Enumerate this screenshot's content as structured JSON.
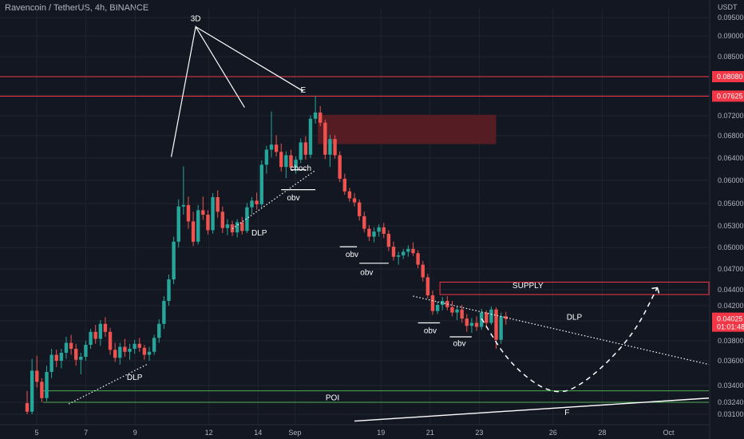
{
  "title": "Ravencoin / TetherUS, 4h, BINANCE",
  "currency": "USDT",
  "colors": {
    "background": "#131722",
    "grid": "#1f2430",
    "up": "#26a69a",
    "down": "#ef5350",
    "level_line": "#f23645",
    "supply_zone": "#5d1d24",
    "poi_line": "#4caf50",
    "annotation": "#ffffff",
    "axis_text": "#b2b5be",
    "price_tag": "#f23645"
  },
  "chart_data": {
    "type": "candlestick",
    "symbol": "Ravencoin / TetherUS",
    "interval": "4h",
    "exchange": "BINANCE",
    "y_axis_ticks": [
      0.031,
      0.0324,
      0.034,
      0.036,
      0.038,
      0.04,
      0.042,
      0.044,
      0.047,
      0.05,
      0.053,
      0.056,
      0.06,
      0.064,
      0.068,
      0.072,
      0.0765,
      0.0808,
      0.0855,
      0.09,
      0.095
    ],
    "y_axis_labels": [
      "0.03100",
      "0.03240",
      "0.03400",
      "0.03600",
      "0.03800",
      "0.04000",
      "0.04200",
      "0.04400",
      "0.04700",
      "0.05000",
      "0.05300",
      "0.05600",
      "0.06000",
      "0.06400",
      "0.06800",
      "0.07200",
      "0.07650",
      "0.08080",
      "0.08500",
      "0.09000",
      "0.09500"
    ],
    "x_axis_labels": [
      "5",
      "7",
      "9",
      "12",
      "14",
      "Sep",
      "19",
      "21",
      "23",
      "26",
      "28",
      "Oct"
    ],
    "x_axis_positions": [
      0,
      2,
      4,
      7,
      9,
      10.5,
      14,
      16,
      18,
      21,
      23,
      25.7
    ],
    "candles": [
      [
        0.0323,
        0.0335,
        0.031,
        0.0313
      ],
      [
        0.0313,
        0.0362,
        0.031,
        0.0352
      ],
      [
        0.0352,
        0.0365,
        0.0338,
        0.0343
      ],
      [
        0.0343,
        0.0346,
        0.0324,
        0.0328
      ],
      [
        0.0328,
        0.0356,
        0.0325,
        0.0351
      ],
      [
        0.0351,
        0.0372,
        0.0346,
        0.0366
      ],
      [
        0.0366,
        0.0371,
        0.0355,
        0.036
      ],
      [
        0.036,
        0.0372,
        0.0354,
        0.0368
      ],
      [
        0.0368,
        0.0384,
        0.0362,
        0.0378
      ],
      [
        0.0378,
        0.0386,
        0.0366,
        0.0372
      ],
      [
        0.0372,
        0.0377,
        0.0356,
        0.0361
      ],
      [
        0.0361,
        0.0368,
        0.0349,
        0.0364
      ],
      [
        0.0364,
        0.038,
        0.036,
        0.0376
      ],
      [
        0.0376,
        0.0392,
        0.0372,
        0.0389
      ],
      [
        0.0389,
        0.0396,
        0.0377,
        0.0382
      ],
      [
        0.0382,
        0.0401,
        0.0375,
        0.0397
      ],
      [
        0.0397,
        0.0405,
        0.0384,
        0.0389
      ],
      [
        0.0389,
        0.0393,
        0.0366,
        0.0371
      ],
      [
        0.0371,
        0.0378,
        0.0359,
        0.0363
      ],
      [
        0.0363,
        0.0378,
        0.0357,
        0.0374
      ],
      [
        0.0374,
        0.0382,
        0.0364,
        0.0369
      ],
      [
        0.0369,
        0.0377,
        0.0361,
        0.0372
      ],
      [
        0.0372,
        0.0381,
        0.0367,
        0.0377
      ],
      [
        0.0377,
        0.0383,
        0.0369,
        0.0373
      ],
      [
        0.0373,
        0.0376,
        0.0361,
        0.0366
      ],
      [
        0.0366,
        0.0374,
        0.036,
        0.0369
      ],
      [
        0.0369,
        0.0386,
        0.0366,
        0.0383
      ],
      [
        0.0383,
        0.0402,
        0.0378,
        0.0397
      ],
      [
        0.0397,
        0.0432,
        0.0392,
        0.0426
      ],
      [
        0.0426,
        0.0462,
        0.042,
        0.0455
      ],
      [
        0.0455,
        0.0515,
        0.0448,
        0.0508
      ],
      [
        0.0508,
        0.0567,
        0.05,
        0.0556
      ],
      [
        0.0556,
        0.0625,
        0.0545,
        0.0558
      ],
      [
        0.0558,
        0.0572,
        0.0526,
        0.0536
      ],
      [
        0.0536,
        0.0549,
        0.0502,
        0.0508
      ],
      [
        0.0508,
        0.0558,
        0.0504,
        0.0551
      ],
      [
        0.0551,
        0.0572,
        0.0538,
        0.0545
      ],
      [
        0.0545,
        0.0551,
        0.0518,
        0.0524
      ],
      [
        0.0524,
        0.0578,
        0.0519,
        0.0571
      ],
      [
        0.0571,
        0.0583,
        0.0541,
        0.0549
      ],
      [
        0.0549,
        0.0556,
        0.052,
        0.0527
      ],
      [
        0.0527,
        0.0539,
        0.0517,
        0.0532
      ],
      [
        0.0532,
        0.0537,
        0.0516,
        0.0521
      ],
      [
        0.0521,
        0.0539,
        0.0514,
        0.0535
      ],
      [
        0.0535,
        0.0542,
        0.0518,
        0.0523
      ],
      [
        0.0523,
        0.0561,
        0.052,
        0.0555
      ],
      [
        0.0555,
        0.0571,
        0.0546,
        0.0565
      ],
      [
        0.0565,
        0.0579,
        0.0552,
        0.0559
      ],
      [
        0.0559,
        0.0636,
        0.0555,
        0.0628
      ],
      [
        0.0628,
        0.0662,
        0.0612,
        0.0655
      ],
      [
        0.0655,
        0.0729,
        0.0641,
        0.0664
      ],
      [
        0.0664,
        0.0681,
        0.0643,
        0.0651
      ],
      [
        0.0651,
        0.0666,
        0.0616,
        0.0624
      ],
      [
        0.0624,
        0.0652,
        0.0604,
        0.0645
      ],
      [
        0.0645,
        0.0655,
        0.0618,
        0.0623
      ],
      [
        0.0623,
        0.0643,
        0.0612,
        0.0637
      ],
      [
        0.0637,
        0.0675,
        0.0631,
        0.0668
      ],
      [
        0.0668,
        0.0679,
        0.0637,
        0.0646
      ],
      [
        0.0646,
        0.0721,
        0.064,
        0.0714
      ],
      [
        0.0714,
        0.0762,
        0.0704,
        0.0727
      ],
      [
        0.0727,
        0.0741,
        0.0699,
        0.0706
      ],
      [
        0.0706,
        0.0712,
        0.0638,
        0.0646
      ],
      [
        0.0646,
        0.0682,
        0.0624,
        0.0674
      ],
      [
        0.0674,
        0.0681,
        0.0639,
        0.0645
      ],
      [
        0.0645,
        0.0652,
        0.0597,
        0.0603
      ],
      [
        0.0603,
        0.0612,
        0.0575,
        0.0581
      ],
      [
        0.0581,
        0.0587,
        0.0563,
        0.0569
      ],
      [
        0.0569,
        0.0578,
        0.0556,
        0.0562
      ],
      [
        0.0562,
        0.0567,
        0.0537,
        0.0543
      ],
      [
        0.0543,
        0.0549,
        0.0521,
        0.0526
      ],
      [
        0.0526,
        0.0531,
        0.0509,
        0.0515
      ],
      [
        0.0515,
        0.0528,
        0.0507,
        0.0522
      ],
      [
        0.0522,
        0.0532,
        0.0515,
        0.0528
      ],
      [
        0.0528,
        0.0534,
        0.0513,
        0.0519
      ],
      [
        0.0519,
        0.0524,
        0.0495,
        0.0501
      ],
      [
        0.0501,
        0.0508,
        0.0482,
        0.0487
      ],
      [
        0.0487,
        0.0494,
        0.0476,
        0.0489
      ],
      [
        0.0489,
        0.0498,
        0.0484,
        0.0494
      ],
      [
        0.0494,
        0.0503,
        0.0487,
        0.0498
      ],
      [
        0.0498,
        0.0507,
        0.0488,
        0.0492
      ],
      [
        0.0492,
        0.0496,
        0.0471,
        0.0476
      ],
      [
        0.0476,
        0.0481,
        0.0452,
        0.0458
      ],
      [
        0.0458,
        0.0463,
        0.0429,
        0.0433
      ],
      [
        0.0433,
        0.0439,
        0.0408,
        0.0413
      ],
      [
        0.0413,
        0.0425,
        0.0409,
        0.0421
      ],
      [
        0.0421,
        0.0431,
        0.0414,
        0.0426
      ],
      [
        0.0426,
        0.0432,
        0.0414,
        0.0418
      ],
      [
        0.0418,
        0.0426,
        0.0406,
        0.0411
      ],
      [
        0.0411,
        0.0419,
        0.0401,
        0.0415
      ],
      [
        0.0415,
        0.0421,
        0.0398,
        0.0403
      ],
      [
        0.0403,
        0.0409,
        0.0389,
        0.0395
      ],
      [
        0.0395,
        0.0404,
        0.0388,
        0.0398
      ],
      [
        0.0398,
        0.0406,
        0.039,
        0.0394
      ],
      [
        0.0394,
        0.0416,
        0.0391,
        0.0411
      ],
      [
        0.0411,
        0.0414,
        0.0393,
        0.0398
      ],
      [
        0.0398,
        0.0419,
        0.0396,
        0.0415
      ],
      [
        0.0415,
        0.0418,
        0.0372,
        0.0381
      ],
      [
        0.0381,
        0.0411,
        0.0377,
        0.0406
      ],
      [
        0.0406,
        0.0412,
        0.0396,
        0.04025
      ]
    ],
    "levels": [
      {
        "label": "0.08080",
        "value": 0.0808
      },
      {
        "label": "0.07625",
        "value": 0.07625
      }
    ],
    "current_price": {
      "label": "0.04025",
      "countdown": "01:01:48"
    },
    "zones": [
      {
        "name": "supply-zone-upper",
        "x0": 59.5,
        "x1": 96,
        "y0": 0.0665,
        "y1": 0.0722
      },
      {
        "name": "supply-zone-lower",
        "label": "SUPPLY",
        "x0": 84.5,
        "x1": 141,
        "y0": 0.0434,
        "y1": 0.0451
      }
    ],
    "poi": {
      "label": "POI",
      "x0": 0,
      "x1": 141,
      "y0": 0.0324,
      "y1": 0.0335
    },
    "annotations": [
      {
        "text": "3D",
        "x": 34.5,
        "y": 0.0949
      },
      {
        "text": "E",
        "x": 56.5,
        "y": 0.0778
      },
      {
        "text": "choch",
        "x": 56,
        "y": 0.0623
      },
      {
        "text": "obv",
        "x": 54.5,
        "y": 0.0571
      },
      {
        "text": "DLP",
        "x": 47.5,
        "y": 0.0521
      },
      {
        "text": "obv",
        "x": 66.5,
        "y": 0.0491
      },
      {
        "text": "obv",
        "x": 69.5,
        "y": 0.0466
      },
      {
        "text": "obv",
        "x": 82.5,
        "y": 0.0391
      },
      {
        "text": "obv",
        "x": 88.5,
        "y": 0.0378
      },
      {
        "text": "DLP",
        "x": 112,
        "y": 0.0406
      },
      {
        "text": "DLP",
        "x": 22,
        "y": 0.0347
      },
      {
        "text": "SUPPLY",
        "x": 102.5,
        "y": 0.0447
      },
      {
        "text": "POI",
        "x": 62.5,
        "y": 0.0329
      },
      {
        "text": "F",
        "x": 110.5,
        "y": 0.0313
      }
    ],
    "three_drive_lines": [
      [
        [
          29.5,
          0.0642
        ],
        [
          34.5,
          0.0925
        ],
        [
          44.5,
          0.0738
        ],
        [
          34.5,
          0.0925
        ],
        [
          56.5,
          0.0774
        ]
      ]
    ],
    "obv_marks": [
      {
        "x0": 52,
        "x1": 59,
        "y": 0.0584,
        "label": "obv"
      },
      {
        "x0": 54,
        "x1": 57,
        "y": 0.0619,
        "label": "choch"
      },
      {
        "x0": 64,
        "x1": 67.5,
        "y": 0.0501
      },
      {
        "x0": 68,
        "x1": 74,
        "y": 0.0478
      },
      {
        "x0": 80,
        "x1": 84.5,
        "y": 0.0398
      },
      {
        "x0": 86.5,
        "x1": 91,
        "y": 0.0384
      }
    ],
    "trendlines": [
      {
        "name": "dlp-left",
        "style": "dotted",
        "points": [
          [
            8.5,
            0.0322
          ],
          [
            24.5,
            0.0357
          ]
        ]
      },
      {
        "name": "dlp-mid",
        "style": "dotted",
        "points": [
          [
            42,
            0.0526
          ],
          [
            59,
            0.0618
          ]
        ]
      },
      {
        "name": "dlp-right",
        "style": "dotted",
        "points": [
          [
            79,
            0.0432
          ],
          [
            141,
            0.0357
          ]
        ]
      },
      {
        "name": "f-line",
        "style": "solid",
        "points": [
          [
            67,
            0.0302
          ],
          [
            141,
            0.0328
          ]
        ]
      }
    ],
    "projection": {
      "points": [
        [
          93,
          0.0403
        ],
        [
          99,
          0.0356
        ],
        [
          108,
          0.0329
        ],
        [
          115,
          0.0344
        ],
        [
          124,
          0.0385
        ],
        [
          129,
          0.0443
        ]
      ]
    }
  }
}
